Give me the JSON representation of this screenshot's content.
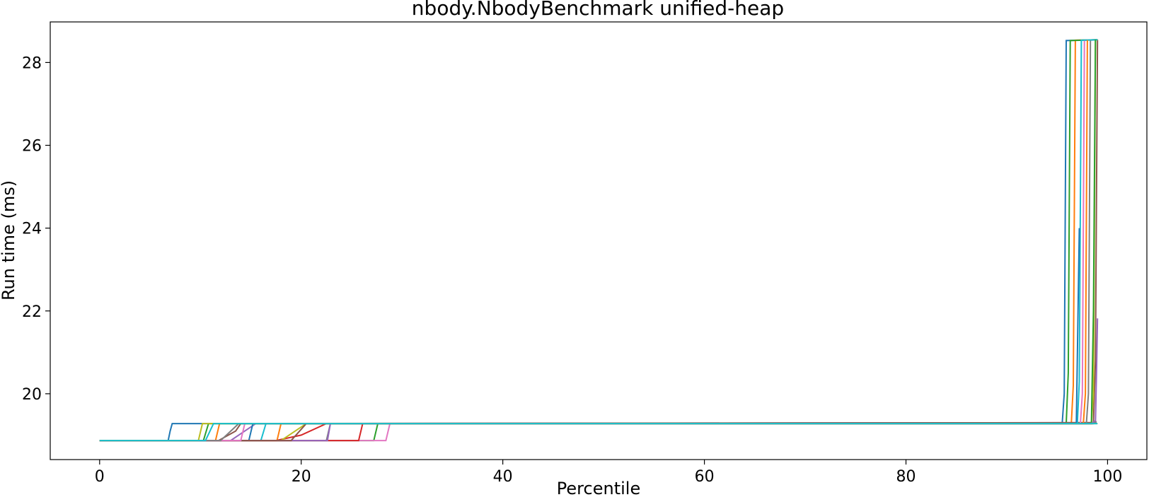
{
  "chart_data": {
    "type": "line",
    "title": "nbody.NbodyBenchmark unified-heap",
    "xlabel": "Percentile",
    "ylabel": "Run time (ms)",
    "xlim": [
      -4.9,
      103.9
    ],
    "ylim": [
      18.41,
      28.98
    ],
    "xticks": [
      0,
      20,
      40,
      60,
      80,
      100
    ],
    "yticks": [
      20,
      22,
      24,
      26,
      28
    ],
    "grid": false,
    "legend": "none",
    "series": [
      {
        "color": "#1f77b4",
        "values": [
          [
            0,
            18.87
          ],
          [
            6.8,
            18.87
          ],
          [
            7.0,
            19.1
          ],
          [
            7.2,
            19.28
          ],
          [
            95.5,
            19.28
          ],
          [
            95.7,
            20.0
          ],
          [
            95.9,
            28.53
          ],
          [
            99.0,
            28.55
          ]
        ]
      },
      {
        "color": "#ff7f0e",
        "values": [
          [
            0,
            18.87
          ],
          [
            11.5,
            18.87
          ],
          [
            11.9,
            19.28
          ],
          [
            96.4,
            19.28
          ],
          [
            96.6,
            20.2
          ],
          [
            96.8,
            28.54
          ],
          [
            99.0,
            28.55
          ]
        ]
      },
      {
        "color": "#2ca02c",
        "values": [
          [
            0,
            18.87
          ],
          [
            27.2,
            18.87
          ],
          [
            27.6,
            19.28
          ],
          [
            95.9,
            19.28
          ],
          [
            96.1,
            20.5
          ],
          [
            96.3,
            28.53
          ],
          [
            99.0,
            28.55
          ]
        ]
      },
      {
        "color": "#d62728",
        "values": [
          [
            0,
            18.87
          ],
          [
            17.5,
            18.87
          ],
          [
            20.0,
            19.0
          ],
          [
            22.5,
            19.28
          ],
          [
            98.6,
            19.3
          ],
          [
            98.9,
            19.33
          ]
        ]
      },
      {
        "color": "#9467bd",
        "values": [
          [
            0,
            18.87
          ],
          [
            13.0,
            18.87
          ],
          [
            15.5,
            19.28
          ],
          [
            98.8,
            19.3
          ],
          [
            98.9,
            20.5
          ],
          [
            99.0,
            21.82
          ]
        ]
      },
      {
        "color": "#8c564b",
        "values": [
          [
            0,
            18.87
          ],
          [
            11.8,
            18.87
          ],
          [
            13.5,
            19.1
          ],
          [
            14.0,
            19.28
          ],
          [
            98.6,
            19.3
          ],
          [
            98.8,
            20.8
          ],
          [
            99.0,
            28.55
          ]
        ]
      },
      {
        "color": "#e377c2",
        "values": [
          [
            0,
            18.87
          ],
          [
            28.4,
            18.87
          ],
          [
            28.8,
            19.28
          ],
          [
            97.3,
            19.28
          ],
          [
            97.5,
            20.0
          ],
          [
            97.7,
            28.54
          ],
          [
            99.0,
            28.55
          ]
        ]
      },
      {
        "color": "#7f7f7f",
        "values": [
          [
            0,
            18.87
          ],
          [
            22.5,
            18.87
          ],
          [
            22.9,
            19.28
          ],
          [
            97.9,
            19.28
          ],
          [
            98.1,
            20.0
          ],
          [
            98.3,
            28.54
          ],
          [
            99.0,
            28.55
          ]
        ]
      },
      {
        "color": "#bcbd22",
        "values": [
          [
            0,
            18.87
          ],
          [
            18.0,
            18.87
          ],
          [
            20.5,
            19.28
          ],
          [
            98.4,
            19.28
          ],
          [
            98.6,
            20.0
          ],
          [
            98.8,
            28.55
          ],
          [
            99.0,
            28.55
          ]
        ]
      },
      {
        "color": "#17becf",
        "values": [
          [
            0,
            18.87
          ],
          [
            16.0,
            18.87
          ],
          [
            16.5,
            19.28
          ],
          [
            97.0,
            19.28
          ],
          [
            97.2,
            20.3
          ],
          [
            97.4,
            28.54
          ],
          [
            99.0,
            28.55
          ]
        ]
      },
      {
        "color": "#1f77b4",
        "values": [
          [
            0,
            18.87
          ],
          [
            14.8,
            18.87
          ],
          [
            15.2,
            19.28
          ],
          [
            96.9,
            19.28
          ],
          [
            97.2,
            24.0
          ]
        ]
      },
      {
        "color": "#ff7f0e",
        "values": [
          [
            0,
            18.87
          ],
          [
            17.6,
            18.87
          ],
          [
            18.0,
            19.28
          ],
          [
            97.6,
            19.28
          ],
          [
            97.8,
            20.0
          ],
          [
            98.0,
            28.54
          ]
        ]
      },
      {
        "color": "#2ca02c",
        "values": [
          [
            0,
            18.87
          ],
          [
            10.3,
            18.87
          ],
          [
            10.8,
            19.28
          ],
          [
            98.4,
            19.28
          ],
          [
            98.6,
            22.0
          ],
          [
            98.8,
            28.55
          ]
        ]
      },
      {
        "color": "#d62728",
        "values": [
          [
            0,
            18.87
          ],
          [
            25.7,
            18.87
          ],
          [
            26.1,
            19.28
          ],
          [
            98.6,
            19.28
          ],
          [
            98.8,
            19.33
          ]
        ]
      },
      {
        "color": "#9467bd",
        "values": [
          [
            0,
            18.87
          ],
          [
            22.6,
            18.87
          ],
          [
            22.9,
            19.28
          ],
          [
            98.4,
            19.28
          ],
          [
            98.8,
            19.35
          ]
        ]
      },
      {
        "color": "#8c564b",
        "values": [
          [
            0,
            18.87
          ],
          [
            19.0,
            18.87
          ],
          [
            20.5,
            19.28
          ],
          [
            98.5,
            19.28
          ],
          [
            98.9,
            19.32
          ]
        ]
      },
      {
        "color": "#e377c2",
        "values": [
          [
            0,
            18.87
          ],
          [
            14.0,
            18.87
          ],
          [
            14.4,
            19.28
          ],
          [
            98.5,
            19.28
          ],
          [
            98.9,
            19.32
          ]
        ]
      },
      {
        "color": "#7f7f7f",
        "values": [
          [
            0,
            18.87
          ],
          [
            12.0,
            18.87
          ],
          [
            13.8,
            19.28
          ],
          [
            98.5,
            19.28
          ],
          [
            98.9,
            19.32
          ]
        ]
      },
      {
        "color": "#bcbd22",
        "values": [
          [
            0,
            18.87
          ],
          [
            9.8,
            18.87
          ],
          [
            10.2,
            19.28
          ],
          [
            99.0,
            19.28
          ]
        ]
      },
      {
        "color": "#17becf",
        "values": [
          [
            0,
            18.87
          ],
          [
            10.5,
            18.87
          ],
          [
            11.3,
            19.28
          ],
          [
            99.0,
            19.28
          ]
        ]
      }
    ]
  }
}
